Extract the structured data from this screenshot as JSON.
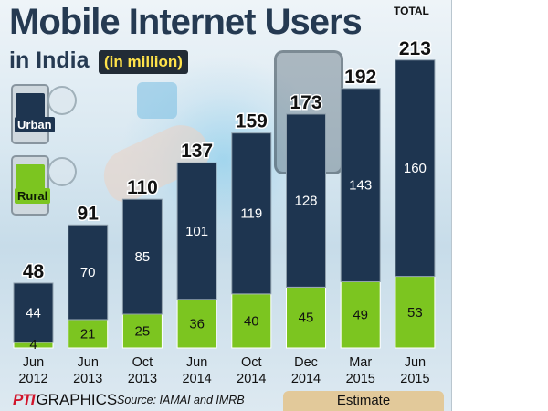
{
  "title": "Mobile Internet Users",
  "subtitle": "in India",
  "unit_tag": "(in million)",
  "legend": [
    {
      "label": "Urban",
      "color": "#1e3550",
      "icon": "urban-phone-icon"
    },
    {
      "label": "Rural",
      "color": "#7cc520",
      "icon": "rural-phone-icon"
    }
  ],
  "total_label": "TOTAL",
  "estimate_label": "Estimate",
  "source": "Source: IAMAI and IMRB",
  "logo": {
    "mark": "PTI",
    "text": "GRAPHICS"
  },
  "colors": {
    "urban": "#1e3550",
    "rural": "#7cc520",
    "title": "#253a52",
    "estimate": "#e2c99a"
  },
  "chart_data": {
    "type": "bar",
    "stacked": true,
    "title": "Mobile Internet Users in India (in million)",
    "categories": [
      [
        "Jun",
        "2012"
      ],
      [
        "Jun",
        "2013"
      ],
      [
        "Oct",
        "2013"
      ],
      [
        "Jun",
        "2014"
      ],
      [
        "Oct",
        "2014"
      ],
      [
        "Dec",
        "2014"
      ],
      [
        "Mar",
        "2015"
      ],
      [
        "Jun",
        "2015"
      ]
    ],
    "series": [
      {
        "name": "Rural",
        "values": [
          4,
          21,
          25,
          36,
          40,
          45,
          49,
          53
        ]
      },
      {
        "name": "Urban",
        "values": [
          44,
          70,
          85,
          101,
          119,
          128,
          143,
          160
        ]
      }
    ],
    "totals": [
      48,
      91,
      110,
      137,
      159,
      173,
      192,
      213
    ],
    "estimate_categories": [
      "Dec 2014",
      "Mar 2015",
      "Jun 2015"
    ],
    "ylim": [
      0,
      213
    ]
  }
}
